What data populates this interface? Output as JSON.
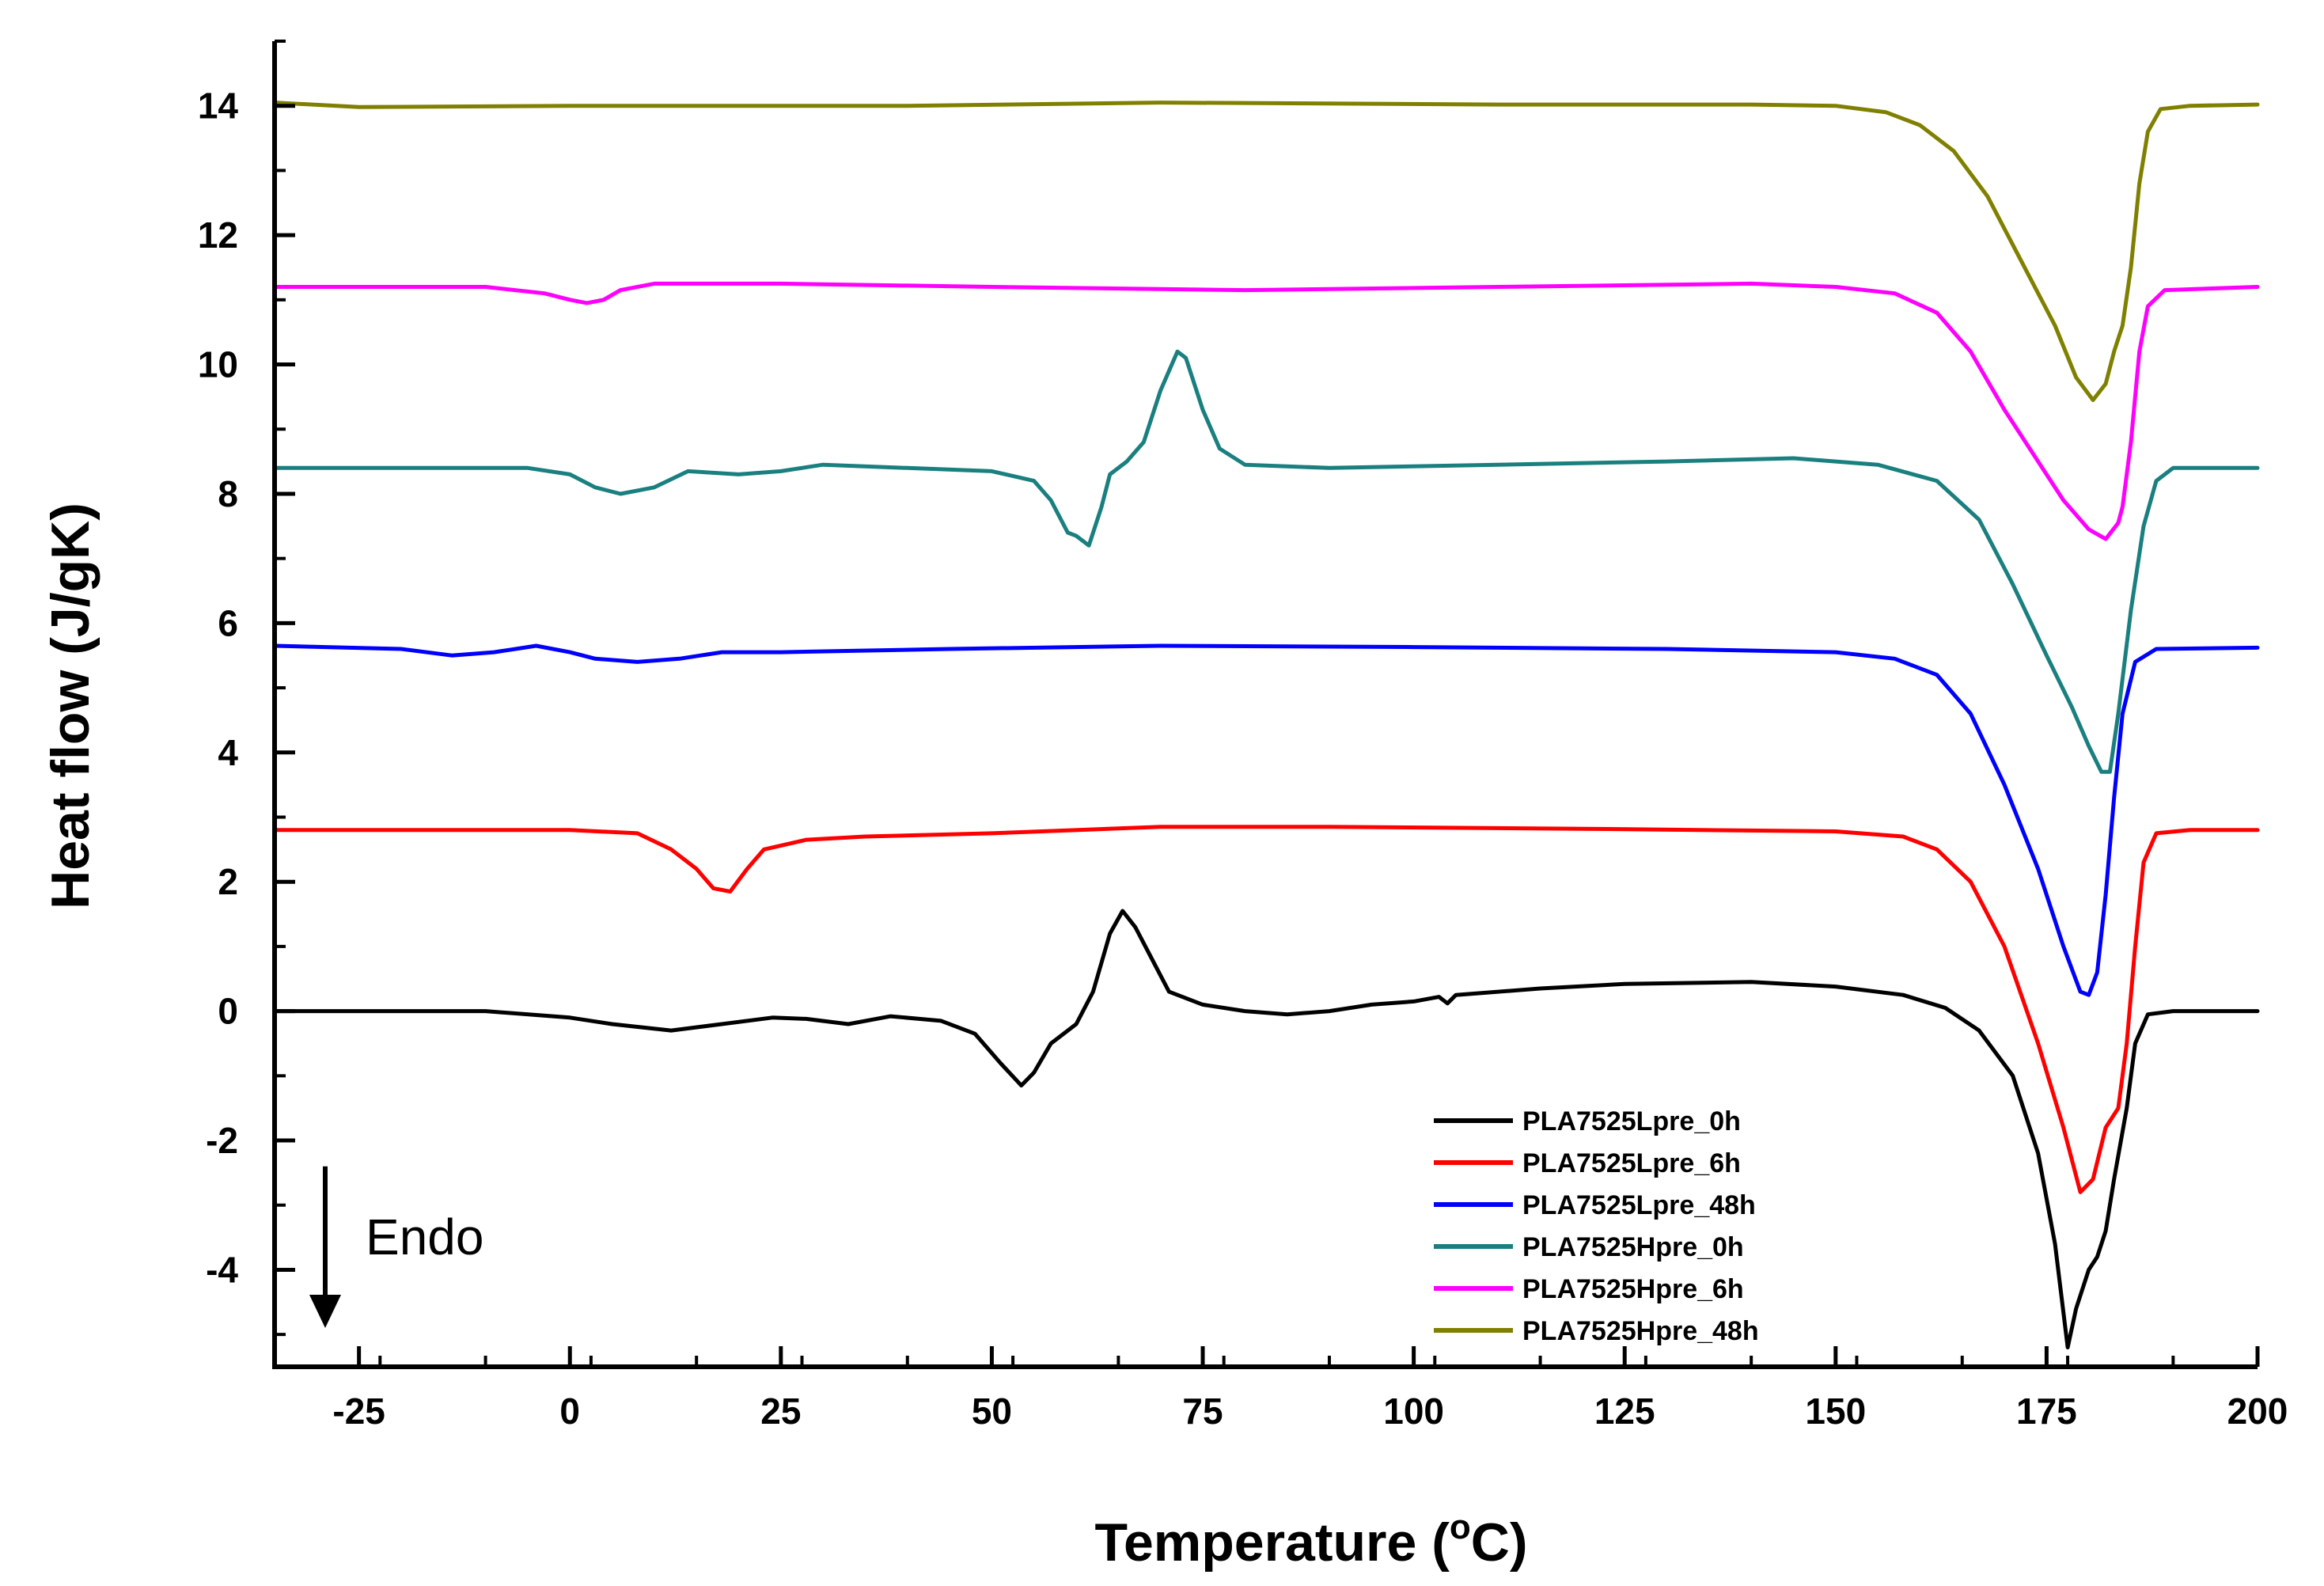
{
  "chart_data": {
    "type": "line",
    "title": "",
    "xlabel": "Temperature (",
    "xlabel_sup": "o",
    "xlabel_suffix": "C)",
    "ylabel": "Heat flow (J/gK)",
    "xlim": [
      -35,
      200
    ],
    "ylim": [
      -5.5,
      15
    ],
    "xticks": [
      -25,
      0,
      25,
      50,
      75,
      100,
      125,
      150,
      175,
      200
    ],
    "yticks": [
      -4,
      -2,
      0,
      2,
      4,
      6,
      8,
      10,
      12,
      14
    ],
    "legend_position": "bottom-right",
    "annotation": {
      "text": "Endo",
      "arrow_x": -29,
      "arrow_from_y": -2.4,
      "arrow_to_y": -4.9
    },
    "series": [
      {
        "name": "PLA7525Lpre_0h",
        "color": "#000000",
        "points": [
          [
            -35,
            0.0
          ],
          [
            -10,
            0.0
          ],
          [
            0,
            -0.1
          ],
          [
            5,
            -0.2
          ],
          [
            12,
            -0.3
          ],
          [
            18,
            -0.2
          ],
          [
            24,
            -0.1
          ],
          [
            28,
            -0.12
          ],
          [
            33,
            -0.2
          ],
          [
            38,
            -0.08
          ],
          [
            44,
            -0.15
          ],
          [
            48,
            -0.35
          ],
          [
            51,
            -0.8
          ],
          [
            53.5,
            -1.15
          ],
          [
            55,
            -0.95
          ],
          [
            57,
            -0.5
          ],
          [
            60,
            -0.2
          ],
          [
            62,
            0.3
          ],
          [
            64,
            1.2
          ],
          [
            65.5,
            1.55
          ],
          [
            67,
            1.3
          ],
          [
            69,
            0.8
          ],
          [
            71,
            0.3
          ],
          [
            75,
            0.1
          ],
          [
            80,
            0.0
          ],
          [
            85,
            -0.05
          ],
          [
            90,
            0.0
          ],
          [
            95,
            0.1
          ],
          [
            100,
            0.15
          ],
          [
            103,
            0.22
          ],
          [
            104,
            0.12
          ],
          [
            105,
            0.25
          ],
          [
            115,
            0.35
          ],
          [
            125,
            0.42
          ],
          [
            140,
            0.45
          ],
          [
            150,
            0.38
          ],
          [
            158,
            0.25
          ],
          [
            163,
            0.05
          ],
          [
            167,
            -0.3
          ],
          [
            171,
            -1.0
          ],
          [
            174,
            -2.2
          ],
          [
            176,
            -3.6
          ],
          [
            177.5,
            -5.2
          ],
          [
            178.5,
            -4.6
          ],
          [
            180,
            -4.0
          ],
          [
            181,
            -3.8
          ],
          [
            182,
            -3.4
          ],
          [
            183,
            -2.6
          ],
          [
            184.5,
            -1.5
          ],
          [
            185.5,
            -0.5
          ],
          [
            187,
            -0.05
          ],
          [
            190,
            0.0
          ],
          [
            200,
            0.0
          ]
        ]
      },
      {
        "name": "PLA7525Lpre_6h",
        "color": "#ff0000",
        "points": [
          [
            -35,
            2.8
          ],
          [
            0,
            2.8
          ],
          [
            8,
            2.75
          ],
          [
            12,
            2.5
          ],
          [
            15,
            2.2
          ],
          [
            17,
            1.9
          ],
          [
            19,
            1.85
          ],
          [
            21,
            2.2
          ],
          [
            23,
            2.5
          ],
          [
            28,
            2.65
          ],
          [
            35,
            2.7
          ],
          [
            50,
            2.75
          ],
          [
            70,
            2.85
          ],
          [
            90,
            2.85
          ],
          [
            120,
            2.82
          ],
          [
            150,
            2.78
          ],
          [
            158,
            2.7
          ],
          [
            162,
            2.5
          ],
          [
            166,
            2.0
          ],
          [
            170,
            1.0
          ],
          [
            174,
            -0.5
          ],
          [
            177,
            -1.8
          ],
          [
            179,
            -2.8
          ],
          [
            180.5,
            -2.6
          ],
          [
            182,
            -1.8
          ],
          [
            183.5,
            -1.5
          ],
          [
            184.5,
            -0.5
          ],
          [
            185.5,
            1.0
          ],
          [
            186.5,
            2.3
          ],
          [
            188,
            2.75
          ],
          [
            192,
            2.8
          ],
          [
            200,
            2.8
          ]
        ]
      },
      {
        "name": "PLA7525Lpre_48h",
        "color": "#0000ff",
        "points": [
          [
            -35,
            5.65
          ],
          [
            -20,
            5.6
          ],
          [
            -14,
            5.5
          ],
          [
            -9,
            5.55
          ],
          [
            -4,
            5.65
          ],
          [
            0,
            5.55
          ],
          [
            3,
            5.45
          ],
          [
            8,
            5.4
          ],
          [
            13,
            5.45
          ],
          [
            18,
            5.55
          ],
          [
            25,
            5.55
          ],
          [
            45,
            5.6
          ],
          [
            70,
            5.65
          ],
          [
            100,
            5.63
          ],
          [
            130,
            5.6
          ],
          [
            150,
            5.55
          ],
          [
            157,
            5.45
          ],
          [
            162,
            5.2
          ],
          [
            166,
            4.6
          ],
          [
            170,
            3.5
          ],
          [
            174,
            2.2
          ],
          [
            177,
            1.0
          ],
          [
            179,
            0.3
          ],
          [
            180,
            0.25
          ],
          [
            181,
            0.6
          ],
          [
            182,
            1.8
          ],
          [
            183,
            3.3
          ],
          [
            184,
            4.6
          ],
          [
            185.5,
            5.4
          ],
          [
            188,
            5.6
          ],
          [
            200,
            5.62
          ]
        ]
      },
      {
        "name": "PLA7525Hpre_0h",
        "color": "#1a7f7f",
        "points": [
          [
            -35,
            8.4
          ],
          [
            -5,
            8.4
          ],
          [
            0,
            8.3
          ],
          [
            3,
            8.1
          ],
          [
            6,
            8.0
          ],
          [
            10,
            8.1
          ],
          [
            14,
            8.35
          ],
          [
            20,
            8.3
          ],
          [
            25,
            8.35
          ],
          [
            30,
            8.45
          ],
          [
            40,
            8.4
          ],
          [
            50,
            8.35
          ],
          [
            55,
            8.2
          ],
          [
            57,
            7.9
          ],
          [
            59,
            7.4
          ],
          [
            60,
            7.35
          ],
          [
            61.5,
            7.2
          ],
          [
            63,
            7.8
          ],
          [
            64,
            8.3
          ],
          [
            66,
            8.5
          ],
          [
            68,
            8.8
          ],
          [
            70,
            9.6
          ],
          [
            72,
            10.2
          ],
          [
            73,
            10.1
          ],
          [
            75,
            9.3
          ],
          [
            77,
            8.7
          ],
          [
            80,
            8.45
          ],
          [
            90,
            8.4
          ],
          [
            110,
            8.45
          ],
          [
            130,
            8.5
          ],
          [
            145,
            8.55
          ],
          [
            155,
            8.45
          ],
          [
            162,
            8.2
          ],
          [
            167,
            7.6
          ],
          [
            171,
            6.6
          ],
          [
            175,
            5.5
          ],
          [
            178,
            4.7
          ],
          [
            180,
            4.1
          ],
          [
            181.5,
            3.7
          ],
          [
            182.5,
            3.7
          ],
          [
            183.5,
            4.6
          ],
          [
            185,
            6.2
          ],
          [
            186.5,
            7.5
          ],
          [
            188,
            8.2
          ],
          [
            190,
            8.4
          ],
          [
            200,
            8.4
          ]
        ]
      },
      {
        "name": "PLA7525Hpre_6h",
        "color": "#ff00ff",
        "points": [
          [
            -35,
            11.2
          ],
          [
            -10,
            11.2
          ],
          [
            -3,
            11.1
          ],
          [
            0,
            11.0
          ],
          [
            2,
            10.95
          ],
          [
            4,
            11.0
          ],
          [
            6,
            11.15
          ],
          [
            10,
            11.25
          ],
          [
            25,
            11.25
          ],
          [
            50,
            11.2
          ],
          [
            80,
            11.15
          ],
          [
            110,
            11.2
          ],
          [
            140,
            11.25
          ],
          [
            150,
            11.2
          ],
          [
            157,
            11.1
          ],
          [
            162,
            10.8
          ],
          [
            166,
            10.2
          ],
          [
            170,
            9.3
          ],
          [
            174,
            8.5
          ],
          [
            177,
            7.9
          ],
          [
            180,
            7.45
          ],
          [
            182,
            7.3
          ],
          [
            183.5,
            7.55
          ],
          [
            184,
            7.8
          ],
          [
            185,
            8.8
          ],
          [
            186,
            10.2
          ],
          [
            187,
            10.9
          ],
          [
            189,
            11.15
          ],
          [
            200,
            11.2
          ]
        ]
      },
      {
        "name": "PLA7525Hpre_48h",
        "color": "#808000",
        "points": [
          [
            -35,
            14.05
          ],
          [
            -25,
            13.98
          ],
          [
            0,
            14.0
          ],
          [
            40,
            14.0
          ],
          [
            70,
            14.05
          ],
          [
            110,
            14.02
          ],
          [
            140,
            14.02
          ],
          [
            150,
            14.0
          ],
          [
            156,
            13.9
          ],
          [
            160,
            13.7
          ],
          [
            164,
            13.3
          ],
          [
            168,
            12.6
          ],
          [
            172,
            11.6
          ],
          [
            176,
            10.6
          ],
          [
            178.5,
            9.8
          ],
          [
            180.5,
            9.45
          ],
          [
            182,
            9.7
          ],
          [
            183,
            10.2
          ],
          [
            184,
            10.6
          ],
          [
            185,
            11.5
          ],
          [
            186,
            12.8
          ],
          [
            187,
            13.6
          ],
          [
            188.5,
            13.95
          ],
          [
            192,
            14.0
          ],
          [
            200,
            14.02
          ]
        ]
      }
    ]
  }
}
